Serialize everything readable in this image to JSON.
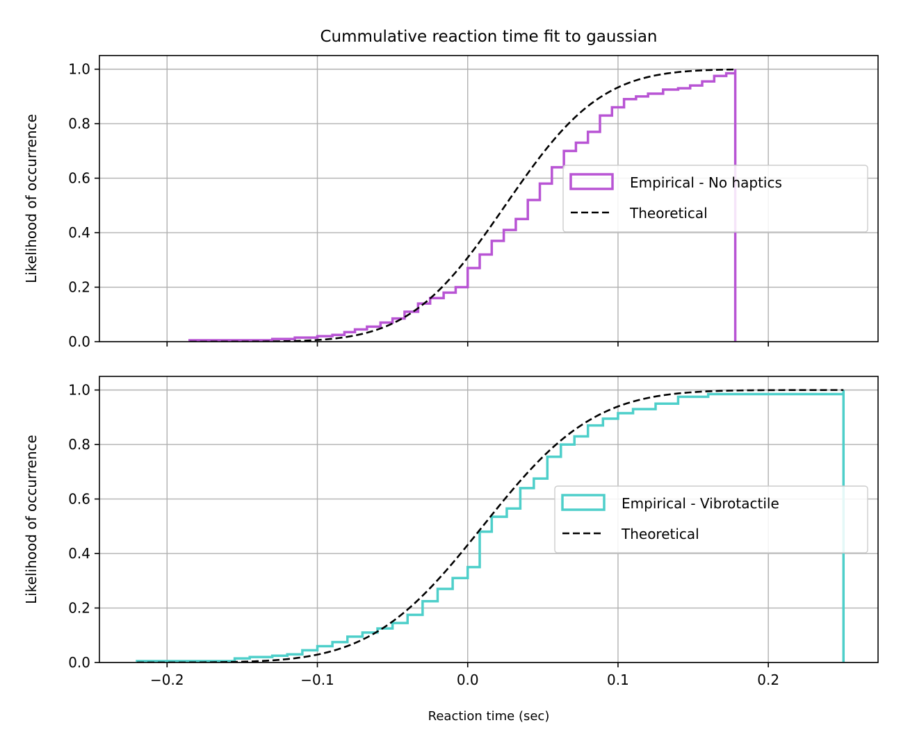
{
  "chart_data": [
    {
      "type": "line",
      "panel": "top",
      "title": "Cummulative reaction time fit to gaussian",
      "xlabel": "",
      "ylabel": "Likelihood of occurrence",
      "xlim": [
        -0.245,
        0.273
      ],
      "ylim": [
        0,
        1.05
      ],
      "xticks": [
        -0.2,
        -0.1,
        0.0,
        0.1,
        0.2
      ],
      "xtick_labels_visible": false,
      "yticks": [
        0.0,
        0.2,
        0.4,
        0.6,
        0.8,
        1.0
      ],
      "ytick_labels": [
        "0.0",
        "0.2",
        "0.4",
        "0.6",
        "0.8",
        "1.0"
      ],
      "grid": true,
      "legend_position": "center-right",
      "colors": {
        "empirical": "#b854d4",
        "theoretical": "#000000"
      },
      "series": [
        {
          "name": "Empirical - No haptics",
          "style": "step-histogram",
          "x": [
            -0.185,
            -0.13,
            -0.115,
            -0.1,
            -0.09,
            -0.082,
            -0.075,
            -0.067,
            -0.058,
            -0.05,
            -0.042,
            -0.033,
            -0.025,
            -0.016,
            -0.008,
            0.0,
            0.008,
            0.016,
            0.024,
            0.032,
            0.04,
            0.048,
            0.056,
            0.064,
            0.072,
            0.08,
            0.088,
            0.096,
            0.104,
            0.112,
            0.12,
            0.13,
            0.14,
            0.148,
            0.156,
            0.164,
            0.172,
            0.178
          ],
          "y": [
            0.005,
            0.01,
            0.015,
            0.02,
            0.025,
            0.035,
            0.045,
            0.055,
            0.07,
            0.085,
            0.11,
            0.14,
            0.16,
            0.18,
            0.2,
            0.27,
            0.32,
            0.37,
            0.41,
            0.45,
            0.52,
            0.58,
            0.64,
            0.7,
            0.73,
            0.77,
            0.83,
            0.86,
            0.89,
            0.9,
            0.91,
            0.925,
            0.93,
            0.94,
            0.955,
            0.975,
            0.985,
            1.0
          ]
        },
        {
          "name": "Theoretical",
          "style": "dashed",
          "mean": 0.025,
          "std": 0.05
        }
      ]
    },
    {
      "type": "line",
      "panel": "bottom",
      "title": "",
      "xlabel": "Reaction time (sec)",
      "ylabel": "Likelihood of occurrence",
      "xlim": [
        -0.245,
        0.273
      ],
      "ylim": [
        0,
        1.05
      ],
      "xticks": [
        -0.2,
        -0.1,
        0.0,
        0.1,
        0.2
      ],
      "xtick_labels": [
        "−0.2",
        "−0.1",
        "0.0",
        "0.1",
        "0.2"
      ],
      "yticks": [
        0.0,
        0.2,
        0.4,
        0.6,
        0.8,
        1.0
      ],
      "ytick_labels": [
        "0.0",
        "0.2",
        "0.4",
        "0.6",
        "0.8",
        "1.0"
      ],
      "grid": true,
      "legend_position": "center-right",
      "colors": {
        "empirical": "#4ecfca",
        "theoretical": "#000000"
      },
      "series": [
        {
          "name": "Empirical - Vibrotactile",
          "style": "step-histogram",
          "x": [
            -0.22,
            -0.155,
            -0.145,
            -0.13,
            -0.12,
            -0.11,
            -0.1,
            -0.09,
            -0.08,
            -0.07,
            -0.06,
            -0.05,
            -0.04,
            -0.03,
            -0.02,
            -0.01,
            0.0,
            0.008,
            0.016,
            0.026,
            0.035,
            0.044,
            0.053,
            0.062,
            0.071,
            0.08,
            0.09,
            0.1,
            0.11,
            0.125,
            0.14,
            0.16,
            0.25
          ],
          "y": [
            0.005,
            0.015,
            0.02,
            0.025,
            0.03,
            0.045,
            0.06,
            0.075,
            0.095,
            0.11,
            0.125,
            0.145,
            0.175,
            0.225,
            0.27,
            0.31,
            0.35,
            0.48,
            0.535,
            0.565,
            0.64,
            0.675,
            0.755,
            0.8,
            0.83,
            0.87,
            0.895,
            0.915,
            0.93,
            0.95,
            0.975,
            0.985,
            1.0
          ]
        },
        {
          "name": "Theoretical",
          "style": "dashed",
          "mean": 0.01,
          "std": 0.058
        }
      ]
    }
  ]
}
